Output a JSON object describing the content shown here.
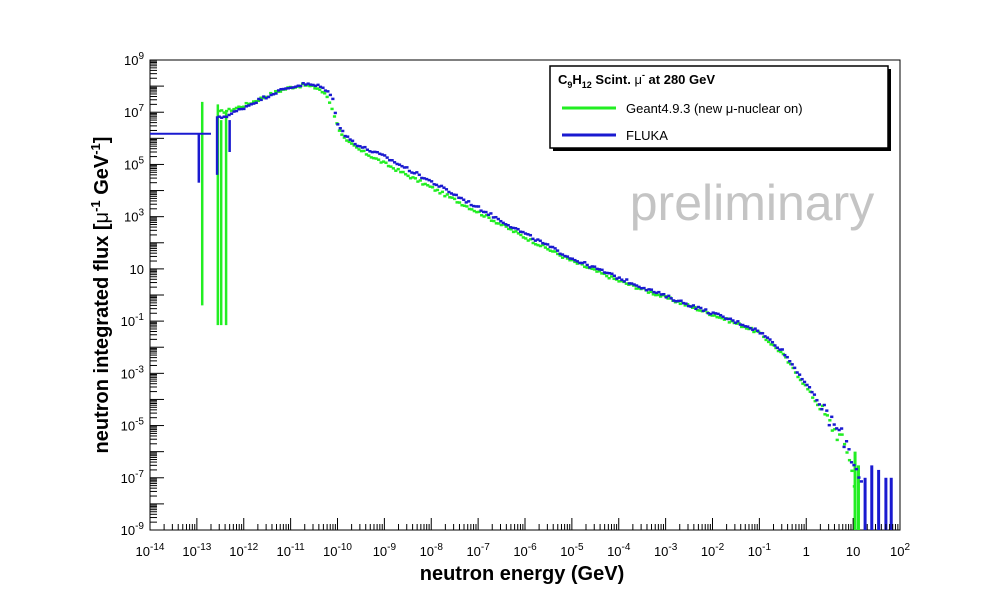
{
  "chart_data": {
    "type": "line",
    "style": "histogram-markers",
    "xlabel": "neutron energy (GeV)",
    "ylabel_parts": [
      "neutron integrated flux [",
      "μ",
      "-1",
      " GeV",
      "-1",
      "]"
    ],
    "x_scale": "log",
    "y_scale": "log",
    "xlim": [
      1e-14,
      100
    ],
    "ylim": [
      1e-09,
      1000000000.0
    ],
    "x_tick_labels": [
      {
        "v": 1e-14,
        "base": "10",
        "exp": "-14"
      },
      {
        "v": 1e-13,
        "base": "10",
        "exp": "-13"
      },
      {
        "v": 1e-12,
        "base": "10",
        "exp": "-12"
      },
      {
        "v": 1e-11,
        "base": "10",
        "exp": "-11"
      },
      {
        "v": 1e-10,
        "base": "10",
        "exp": "-10"
      },
      {
        "v": 1e-09,
        "base": "10",
        "exp": "-9"
      },
      {
        "v": 1e-08,
        "base": "10",
        "exp": "-8"
      },
      {
        "v": 1e-07,
        "base": "10",
        "exp": "-7"
      },
      {
        "v": 1e-06,
        "base": "10",
        "exp": "-6"
      },
      {
        "v": 1e-05,
        "base": "10",
        "exp": "-5"
      },
      {
        "v": 0.0001,
        "base": "10",
        "exp": "-4"
      },
      {
        "v": 0.001,
        "base": "10",
        "exp": "-3"
      },
      {
        "v": 0.01,
        "base": "10",
        "exp": "-2"
      },
      {
        "v": 0.1,
        "base": "10",
        "exp": "-1"
      },
      {
        "v": 1,
        "base": "1",
        "exp": ""
      },
      {
        "v": 10,
        "base": "10",
        "exp": ""
      },
      {
        "v": 100,
        "base": "10",
        "exp": "2"
      }
    ],
    "y_tick_labels": [
      {
        "v": 1e-09,
        "base": "10",
        "exp": "-9"
      },
      {
        "v": 1e-07,
        "base": "10",
        "exp": "-7"
      },
      {
        "v": 1e-05,
        "base": "10",
        "exp": "-5"
      },
      {
        "v": 0.001,
        "base": "10",
        "exp": "-3"
      },
      {
        "v": 0.1,
        "base": "10",
        "exp": "-1"
      },
      {
        "v": 10,
        "base": "10",
        "exp": ""
      },
      {
        "v": 1000.0,
        "base": "10",
        "exp": "3"
      },
      {
        "v": 100000.0,
        "base": "10",
        "exp": "5"
      },
      {
        "v": 10000000.0,
        "base": "10",
        "exp": "7"
      },
      {
        "v": 1000000000.0,
        "base": "10",
        "exp": "9"
      }
    ],
    "legend": {
      "placement": "top-right",
      "title_parts": [
        "C",
        "9",
        "H",
        "12",
        " Scint. ",
        "μ",
        "-",
        " at 280 GeV"
      ],
      "entries": [
        {
          "label_parts": [
            "Geant4.9.3 (new ",
            "μ",
            "-nuclear on)"
          ],
          "color": "#22ee22"
        },
        {
          "label_parts": [
            "FLUKA"
          ],
          "color": "#1a1ad0"
        }
      ]
    },
    "watermark": "preliminary",
    "series": [
      {
        "name": "Geant4.9.3 (new μ-nuclear on)",
        "color": "#22ee22",
        "spikes": [
          {
            "x": 1.3e-13,
            "ylo": 0.4,
            "yhi": 25000000.0
          },
          {
            "x": 2.8e-13,
            "ylo": 0.07,
            "yhi": 20000000.0
          },
          {
            "x": 3.3e-13,
            "ylo": 0.07,
            "yhi": 5000000.0
          },
          {
            "x": 4.2e-13,
            "ylo": 0.07,
            "yhi": 10000000.0
          }
        ],
        "points": [
          [
            3e-13,
            10000000.0
          ],
          [
            5e-13,
            12000000.0
          ],
          [
            1e-12,
            18000000.0
          ],
          [
            2e-12,
            30000000.0
          ],
          [
            5e-12,
            60000000.0
          ],
          [
            1e-11,
            90000000.0
          ],
          [
            2e-11,
            110000000.0
          ],
          [
            4e-11,
            80000000.0
          ],
          [
            6e-11,
            40000000.0
          ],
          [
            8e-11,
            12000000.0
          ],
          [
            1e-10,
            3000000.0
          ],
          [
            1.5e-10,
            800000.0
          ],
          [
            3e-10,
            350000.0
          ],
          [
            1e-09,
            110000.0
          ],
          [
            1e-08,
            13000.0
          ],
          [
            1e-07,
            1500.0
          ],
          [
            1e-06,
            160
          ],
          [
            1e-05,
            20
          ],
          [
            0.0001,
            3.5
          ],
          [
            0.001,
            0.8
          ],
          [
            0.01,
            0.18
          ],
          [
            0.05,
            0.06
          ],
          [
            0.1,
            0.035
          ],
          [
            0.3,
            0.006
          ],
          [
            1,
            0.0003
          ],
          [
            3,
            1.5e-05
          ],
          [
            5,
            4e-06
          ],
          [
            8,
            1e-06
          ],
          [
            10,
            1e-07
          ],
          [
            12,
            1e-08
          ]
        ],
        "drops": [
          {
            "x": 11,
            "ylo": 1e-09,
            "yhi": 1e-06
          },
          {
            "x": 13,
            "ylo": 1e-09,
            "yhi": 3e-07
          }
        ]
      },
      {
        "name": "FLUKA",
        "color": "#1a1ad0",
        "spikes": [
          {
            "x": 1.1e-13,
            "ylo": 20000.0,
            "yhi": 1500000.0
          },
          {
            "x": 2.7e-13,
            "ylo": 40000.0,
            "yhi": 7000000.0
          },
          {
            "x": 5e-13,
            "ylo": 300000.0,
            "yhi": 5000000.0
          }
        ],
        "hbars": [
          {
            "xlo": 1e-14,
            "xhi": 2e-13,
            "y": 1500000.0
          }
        ],
        "points": [
          [
            3e-13,
            6000000.0
          ],
          [
            5e-13,
            8000000.0
          ],
          [
            1e-12,
            15000000.0
          ],
          [
            2e-12,
            28000000.0
          ],
          [
            5e-12,
            60000000.0
          ],
          [
            1e-11,
            90000000.0
          ],
          [
            2e-11,
            120000000.0
          ],
          [
            4e-11,
            100000000.0
          ],
          [
            6e-11,
            70000000.0
          ],
          [
            8e-11,
            30000000.0
          ],
          [
            1e-10,
            4000000.0
          ],
          [
            1.5e-10,
            1200000.0
          ],
          [
            3e-10,
            500000.0
          ],
          [
            1e-09,
            200000.0
          ],
          [
            1e-08,
            22000.0
          ],
          [
            1e-07,
            2200.0
          ],
          [
            1e-06,
            220
          ],
          [
            1e-05,
            25
          ],
          [
            0.0001,
            4.5
          ],
          [
            0.001,
            0.9
          ],
          [
            0.01,
            0.2
          ],
          [
            0.05,
            0.07
          ],
          [
            0.1,
            0.04
          ],
          [
            0.3,
            0.008
          ],
          [
            1,
            0.0004
          ],
          [
            3,
            2e-05
          ],
          [
            5,
            6e-06
          ],
          [
            8,
            1.5e-06
          ],
          [
            10,
            4e-07
          ],
          [
            15,
            1e-07
          ]
        ],
        "drops": [
          {
            "x": 18,
            "ylo": 1e-09,
            "yhi": 1e-07
          },
          {
            "x": 25,
            "ylo": 1e-09,
            "yhi": 3e-07
          },
          {
            "x": 35,
            "ylo": 1e-09,
            "yhi": 2e-07
          },
          {
            "x": 50,
            "ylo": 1e-09,
            "yhi": 1e-07
          },
          {
            "x": 65,
            "ylo": 1e-09,
            "yhi": 1e-07
          }
        ]
      }
    ]
  }
}
